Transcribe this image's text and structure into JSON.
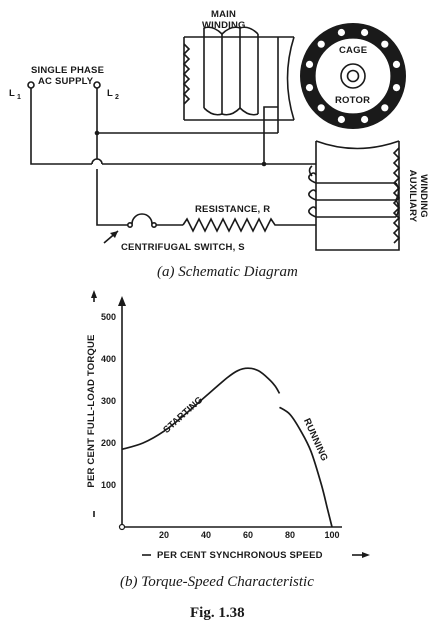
{
  "schematic": {
    "label_L1": "L",
    "label_L1_sub": "1",
    "label_L2": "L",
    "label_L2_sub": "2",
    "supply_line1": "SINGLE PHASE",
    "supply_line2": "AC SUPPLY",
    "main_winding_line1": "MAIN",
    "main_winding_line2": "WINDING",
    "cage_label": "CAGE",
    "rotor_label": "ROTOR",
    "auxiliary_line1": "AUXILIARY",
    "auxiliary_line2": "WINDING",
    "resistance_label": "RESISTANCE, R",
    "switch_label": "CENTRIFUGAL SWITCH, S",
    "caption": "(a) Schematic Diagram"
  },
  "chart_data": {
    "type": "line",
    "ylabel": "PER CENT FULL-LOAD TORQUE",
    "xlabel": "PER CENT SYNCHRONOUS SPEED",
    "xlim": [
      0,
      100
    ],
    "ylim": [
      0,
      500
    ],
    "x_ticks": [
      "20",
      "40",
      "60",
      "80",
      "100"
    ],
    "y_ticks": [
      "100",
      "200",
      "300",
      "400",
      "500"
    ],
    "series": [
      {
        "name": "STARTING",
        "x": [
          0,
          10,
          20,
          30,
          40,
          50,
          55,
          60,
          65,
          70,
          73,
          75
        ],
        "y": [
          185,
          200,
          228,
          268,
          312,
          355,
          372,
          378,
          372,
          352,
          335,
          318
        ]
      },
      {
        "name": "RUNNING",
        "x": [
          75,
          80,
          85,
          90,
          95,
          98,
          100
        ],
        "y": [
          285,
          268,
          230,
          180,
          100,
          40,
          0
        ]
      }
    ],
    "caption": "(b) Torque-Speed Characteristic"
  },
  "figure_label": "Fig. 1.38"
}
